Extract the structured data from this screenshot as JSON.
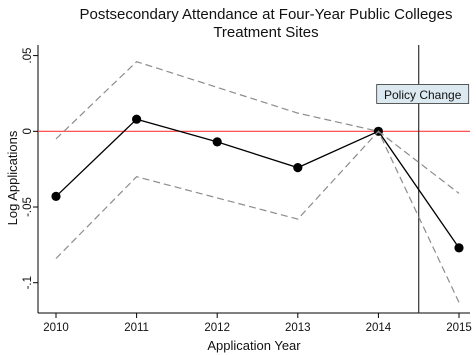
{
  "chart_data": {
    "type": "line",
    "title": "Postsecondary Attendance at Four-Year Public Colleges",
    "subtitle": "Treatment Sites",
    "xlabel": "Application Year",
    "ylabel": "Log Applications",
    "x": [
      2010,
      2011,
      2012,
      2013,
      2014,
      2015
    ],
    "xlim": [
      2010,
      2015
    ],
    "ylim": [
      -0.12,
      0.057
    ],
    "x_ticks": [
      2010,
      2011,
      2012,
      2013,
      2014,
      2015
    ],
    "y_ticks": [
      {
        "value": 0.05,
        "label": ".05"
      },
      {
        "value": 0,
        "label": "0"
      },
      {
        "value": -0.05,
        "label": "-.05"
      },
      {
        "value": -0.1,
        "label": "-.1"
      }
    ],
    "series": [
      {
        "values": [
          -0.043,
          0.008,
          -0.007,
          -0.024,
          0.0,
          -0.077
        ],
        "style": "solid",
        "color": "#000000",
        "markers": true
      },
      {
        "values": [
          -0.005,
          0.046,
          0.029,
          0.012,
          0.0,
          -0.041
        ],
        "style": "dashed",
        "color": "#8c8c8c"
      },
      {
        "values": [
          -0.084,
          -0.03,
          -0.044,
          -0.058,
          0.0,
          -0.113
        ],
        "style": "dashed",
        "color": "#8c8c8c"
      }
    ],
    "reference_line": {
      "y": 0,
      "color": "#ff3b3b"
    },
    "vertical_line": {
      "x": 2014.5,
      "color": "#333333"
    },
    "annotation": {
      "text": "Policy Change",
      "x": 2014.5,
      "y": 0.024
    },
    "grid": false,
    "legend": "none"
  }
}
